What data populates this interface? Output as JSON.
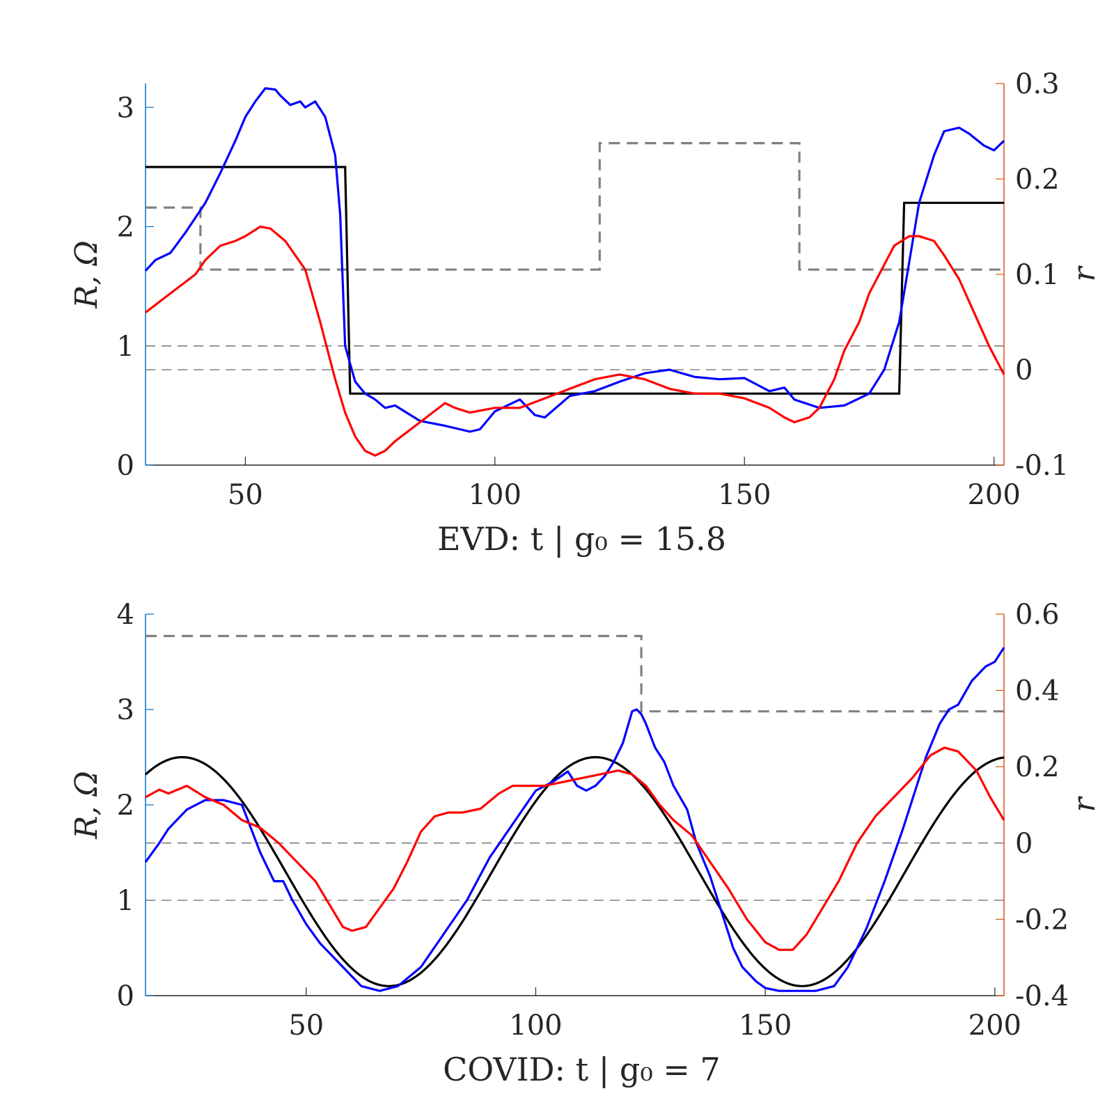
{
  "colors": {
    "R_true": "#000000",
    "R_est": "#0000ff",
    "r_est": "#ff0000",
    "step": "#808080",
    "ref": "#808080",
    "left_axis": "#0072bd",
    "right_axis": "#d95319"
  },
  "chart_data": [
    {
      "type": "line",
      "xlabel": "EVD: t | g₀ = 15.8",
      "ylabel_left": "R, Ω",
      "ylabel_right": "r",
      "xlim": [
        30,
        202
      ],
      "ylim_left": [
        0,
        3.2
      ],
      "ylim_right": [
        -0.1,
        0.3
      ],
      "xticks": [
        "50",
        "100",
        "150",
        "200"
      ],
      "yticks_left": [
        "0",
        "1",
        "2",
        "3"
      ],
      "yticks_right": [
        "-0.1",
        "0",
        "0.1",
        "0.2",
        "0.3"
      ],
      "grid": false,
      "series": [
        {
          "axis": "left",
          "style": "step-dashed",
          "x": [
            30,
            41,
            41,
            121,
            121,
            161,
            161,
            202
          ],
          "y": [
            2.16,
            2.16,
            1.64,
            1.64,
            2.7,
            2.7,
            1.64,
            1.64
          ]
        },
        {
          "axis": "left",
          "style": "hline-dashed",
          "x": [
            30,
            202
          ],
          "y": [
            1,
            1
          ]
        },
        {
          "axis": "right",
          "style": "hline-dashed",
          "x": [
            30,
            202
          ],
          "y": [
            0,
            0
          ]
        },
        {
          "axis": "left",
          "style": "true",
          "x": [
            30,
            70,
            71,
            181,
            182,
            202
          ],
          "y": [
            2.5,
            2.5,
            0.6,
            0.6,
            2.2,
            2.2
          ]
        },
        {
          "axis": "left",
          "style": "estimate",
          "x": [
            30,
            32,
            35,
            38,
            42,
            45,
            48,
            50,
            52,
            54,
            56,
            57,
            59,
            61,
            62,
            64,
            66,
            68,
            69,
            70,
            71,
            72,
            74,
            76,
            78,
            80,
            85,
            90,
            95,
            97,
            100,
            105,
            108,
            110,
            115,
            120,
            125,
            130,
            135,
            140,
            145,
            150,
            155,
            158,
            160,
            165,
            170,
            175,
            178,
            181,
            183,
            185,
            188,
            190,
            193,
            195,
            198,
            200,
            202
          ],
          "y": [
            1.63,
            1.72,
            1.78,
            1.95,
            2.2,
            2.45,
            2.72,
            2.92,
            3.05,
            3.16,
            3.15,
            3.1,
            3.02,
            3.05,
            3.0,
            3.05,
            2.92,
            2.6,
            2.1,
            1.0,
            0.85,
            0.7,
            0.6,
            0.55,
            0.48,
            0.5,
            0.37,
            0.33,
            0.28,
            0.3,
            0.45,
            0.55,
            0.42,
            0.4,
            0.58,
            0.62,
            0.7,
            0.77,
            0.8,
            0.74,
            0.72,
            0.73,
            0.62,
            0.65,
            0.55,
            0.48,
            0.5,
            0.6,
            0.8,
            1.2,
            1.7,
            2.2,
            2.6,
            2.8,
            2.83,
            2.78,
            2.68,
            2.64,
            2.72
          ]
        }
      ],
      "series_right": [
        {
          "axis": "right",
          "style": "estimate",
          "x": [
            30,
            35,
            40,
            42,
            45,
            48,
            50,
            53,
            55,
            58,
            62,
            65,
            68,
            70,
            72,
            74,
            76,
            78,
            80,
            85,
            90,
            92,
            95,
            100,
            105,
            110,
            115,
            120,
            125,
            130,
            135,
            140,
            145,
            150,
            155,
            158,
            160,
            163,
            165,
            168,
            170,
            173,
            175,
            178,
            180,
            183,
            185,
            188,
            190,
            193,
            196,
            199,
            202
          ],
          "y": [
            0.06,
            0.08,
            0.1,
            0.115,
            0.13,
            0.135,
            0.14,
            0.15,
            0.148,
            0.135,
            0.105,
            0.05,
            -0.01,
            -0.045,
            -0.07,
            -0.085,
            -0.09,
            -0.085,
            -0.075,
            -0.055,
            -0.035,
            -0.04,
            -0.045,
            -0.04,
            -0.04,
            -0.03,
            -0.02,
            -0.01,
            -0.005,
            -0.01,
            -0.02,
            -0.025,
            -0.025,
            -0.03,
            -0.04,
            -0.05,
            -0.055,
            -0.05,
            -0.04,
            -0.01,
            0.02,
            0.05,
            0.08,
            0.11,
            0.13,
            0.14,
            0.14,
            0.135,
            0.12,
            0.095,
            0.06,
            0.025,
            -0.005
          ]
        }
      ]
    },
    {
      "type": "line",
      "xlabel": "COVID: t | g₀ = 7",
      "ylabel_left": "R, Ω",
      "ylabel_right": "r",
      "xlim": [
        15,
        202
      ],
      "ylim_left": [
        0,
        4
      ],
      "ylim_right": [
        -0.4,
        0.6
      ],
      "xticks": [
        "50",
        "100",
        "150",
        "200"
      ],
      "yticks_left": [
        "0",
        "1",
        "2",
        "3",
        "4"
      ],
      "yticks_right": [
        "-0.4",
        "-0.2",
        "0",
        "0.2",
        "0.4",
        "0.6"
      ],
      "grid": false,
      "series": [
        {
          "axis": "left",
          "style": "step-dashed",
          "x": [
            15,
            123,
            123,
            202
          ],
          "y": [
            3.77,
            3.77,
            2.98,
            2.98
          ]
        },
        {
          "axis": "left",
          "style": "hline-dashed",
          "x": [
            15,
            202
          ],
          "y": [
            1,
            1
          ]
        },
        {
          "axis": "right",
          "style": "hline-dashed",
          "x": [
            15,
            202
          ],
          "y": [
            0,
            0
          ]
        },
        {
          "axis": "left",
          "style": "true-cosine",
          "amplitude": 1.2,
          "offset": 1.3,
          "period": 90,
          "peak": 23,
          "x": [
            15,
            202
          ]
        },
        {
          "axis": "left",
          "style": "estimate",
          "x": [
            15,
            18,
            20,
            24,
            28,
            32,
            36,
            40,
            43,
            45,
            47,
            50,
            53,
            55,
            58,
            62,
            66,
            70,
            75,
            80,
            85,
            90,
            95,
            100,
            104,
            107,
            109,
            111,
            113,
            115,
            117,
            119,
            121,
            122,
            123,
            124,
            126,
            128,
            130,
            133,
            135,
            138,
            140,
            143,
            145,
            148,
            150,
            153,
            155,
            158,
            161,
            165,
            168,
            172,
            176,
            180,
            185,
            188,
            190,
            192,
            195,
            198,
            200,
            202
          ],
          "y": [
            1.4,
            1.6,
            1.75,
            1.95,
            2.05,
            2.05,
            2.0,
            1.5,
            1.2,
            1.2,
            1.0,
            0.75,
            0.55,
            0.45,
            0.3,
            0.1,
            0.05,
            0.1,
            0.3,
            0.65,
            1.0,
            1.45,
            1.8,
            2.15,
            2.25,
            2.35,
            2.2,
            2.15,
            2.2,
            2.3,
            2.45,
            2.65,
            2.98,
            3.0,
            2.95,
            2.85,
            2.6,
            2.45,
            2.2,
            1.95,
            1.6,
            1.25,
            0.95,
            0.5,
            0.3,
            0.15,
            0.08,
            0.05,
            0.05,
            0.05,
            0.05,
            0.1,
            0.3,
            0.7,
            1.2,
            1.75,
            2.5,
            2.85,
            3.0,
            3.05,
            3.3,
            3.45,
            3.5,
            3.65
          ]
        }
      ],
      "series_right": [
        {
          "axis": "right",
          "style": "estimate",
          "x": [
            15,
            18,
            20,
            24,
            28,
            32,
            36,
            40,
            44,
            48,
            52,
            56,
            58,
            60,
            63,
            66,
            69,
            72,
            75,
            78,
            81,
            84,
            88,
            92,
            95,
            98,
            102,
            106,
            110,
            114,
            118,
            121,
            124,
            127,
            130,
            134,
            138,
            142,
            146,
            150,
            153,
            156,
            159,
            162,
            166,
            170,
            174,
            178,
            182,
            186,
            189,
            192,
            196,
            199,
            202
          ],
          "y": [
            0.12,
            0.14,
            0.13,
            0.15,
            0.12,
            0.1,
            0.06,
            0.04,
            0.0,
            -0.05,
            -0.1,
            -0.18,
            -0.22,
            -0.23,
            -0.22,
            -0.17,
            -0.12,
            -0.05,
            0.03,
            0.07,
            0.08,
            0.08,
            0.09,
            0.13,
            0.15,
            0.15,
            0.15,
            0.16,
            0.17,
            0.18,
            0.19,
            0.18,
            0.15,
            0.1,
            0.06,
            0.02,
            -0.05,
            -0.12,
            -0.2,
            -0.26,
            -0.28,
            -0.28,
            -0.24,
            -0.18,
            -0.1,
            0.0,
            0.07,
            0.12,
            0.17,
            0.23,
            0.25,
            0.24,
            0.19,
            0.12,
            0.06
          ]
        }
      ]
    }
  ]
}
